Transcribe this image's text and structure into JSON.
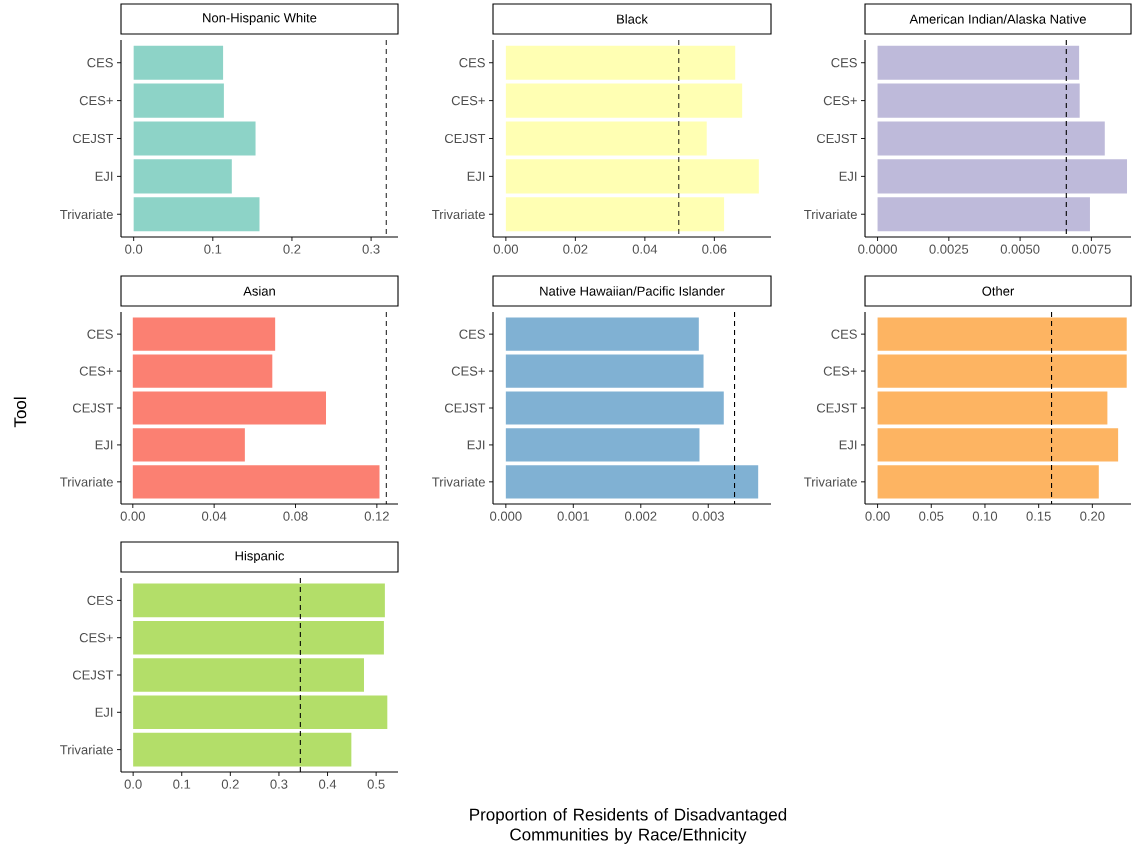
{
  "chart_data": [
    {
      "type": "bar",
      "orientation": "horizontal",
      "title": "Non-Hispanic White",
      "categories": [
        "CES",
        "CES+",
        "CEJST",
        "EJI",
        "Trivariate"
      ],
      "values": [
        0.113,
        0.114,
        0.154,
        0.124,
        0.159
      ],
      "color": "#8dd3c7",
      "xlim": [
        -0.016,
        0.334
      ],
      "xticks": [
        {
          "value": 0,
          "label": "0.0"
        },
        0.1,
        0.2,
        0.3
      ],
      "ref_lines": [
        {
          "axis": "x",
          "value": 0.319,
          "line_style": "dashed"
        }
      ]
    },
    {
      "type": "bar",
      "orientation": "horizontal",
      "title": "Black",
      "categories": [
        "CES",
        "CES+",
        "CEJST",
        "EJI",
        "Trivariate"
      ],
      "values": [
        0.066,
        0.068,
        0.0578,
        0.0728,
        0.0628
      ],
      "color": "#ffffb3",
      "xlim": [
        -0.0037,
        0.0763
      ],
      "xticks": [
        {
          "value": 0,
          "label": "0.00"
        },
        0.02,
        0.04,
        0.06
      ],
      "ref_lines": [
        {
          "axis": "x",
          "value": 0.0498,
          "line_style": "dashed"
        }
      ]
    },
    {
      "type": "bar",
      "orientation": "horizontal",
      "title": "American Indian/Alaska Native",
      "categories": [
        "CES",
        "CES+",
        "CEJST",
        "EJI",
        "Trivariate"
      ],
      "values": [
        0.00707,
        0.00709,
        0.00797,
        0.00875,
        0.00745
      ],
      "color": "#bebada",
      "xlim": [
        -0.00044,
        0.00889
      ],
      "xticks": [
        {
          "value": 0,
          "label": "0.0000"
        },
        0.0025,
        {
          "value": 0.005,
          "label": "0.0050"
        },
        0.0075
      ],
      "ref_lines": [
        {
          "axis": "x",
          "value": 0.00662,
          "line_style": "dashed"
        }
      ]
    },
    {
      "type": "bar",
      "orientation": "horizontal",
      "title": "Asian",
      "ylabel": "Tool",
      "categories": [
        "CES",
        "CES+",
        "CEJST",
        "EJI",
        "Trivariate"
      ],
      "values": [
        0.07,
        0.0686,
        0.095,
        0.0551,
        0.1213
      ],
      "color": "#fb8072",
      "xlim": [
        -0.0058,
        0.1304
      ],
      "xticks": [
        {
          "value": 0,
          "label": "0.00"
        },
        0.04,
        0.08,
        0.12
      ],
      "ref_lines": [
        {
          "axis": "x",
          "value": 0.1246,
          "line_style": "dashed"
        }
      ]
    },
    {
      "type": "bar",
      "orientation": "horizontal",
      "title": "Native Hawaiian/Pacific Islander",
      "categories": [
        "CES",
        "CES+",
        "CEJST",
        "EJI",
        "Trivariate"
      ],
      "values": [
        0.00286,
        0.00293,
        0.00323,
        0.00287,
        0.00374
      ],
      "color": "#80b1d3",
      "xlim": [
        -0.00019,
        0.00393
      ],
      "xticks": [
        {
          "value": 0,
          "label": "0.000"
        },
        0.001,
        0.002,
        0.003
      ],
      "ref_lines": [
        {
          "axis": "x",
          "value": 0.00339,
          "line_style": "dashed"
        }
      ]
    },
    {
      "type": "bar",
      "orientation": "horizontal",
      "title": "Other",
      "categories": [
        "CES",
        "CES+",
        "CEJST",
        "EJI",
        "Trivariate"
      ],
      "values": [
        0.232,
        0.232,
        0.214,
        0.224,
        0.206
      ],
      "color": "#fdb462",
      "xlim": [
        -0.0117,
        0.236
      ],
      "xticks": [
        {
          "value": 0,
          "label": "0.00"
        },
        0.05,
        {
          "value": 0.1,
          "label": "0.10"
        },
        0.15,
        {
          "value": 0.2,
          "label": "0.20"
        }
      ],
      "ref_lines": [
        {
          "axis": "x",
          "value": 0.162,
          "line_style": "dashed"
        }
      ]
    },
    {
      "type": "bar",
      "orientation": "horizontal",
      "title": "Hispanic",
      "xlabel": "Proportion of Residents of Disadvantaged Communities by Race/Ethnicity",
      "categories": [
        "CES",
        "CES+",
        "CEJST",
        "EJI",
        "Trivariate"
      ],
      "values": [
        0.518,
        0.516,
        0.475,
        0.523,
        0.449
      ],
      "color": "#b3de69",
      "xlim": [
        -0.025,
        0.545
      ],
      "xticks": [
        {
          "value": 0,
          "label": "0.0"
        },
        0.1,
        0.2,
        0.3,
        0.4,
        0.5
      ],
      "ref_lines": [
        {
          "axis": "x",
          "value": 0.344,
          "line_style": "dashed"
        }
      ]
    }
  ]
}
